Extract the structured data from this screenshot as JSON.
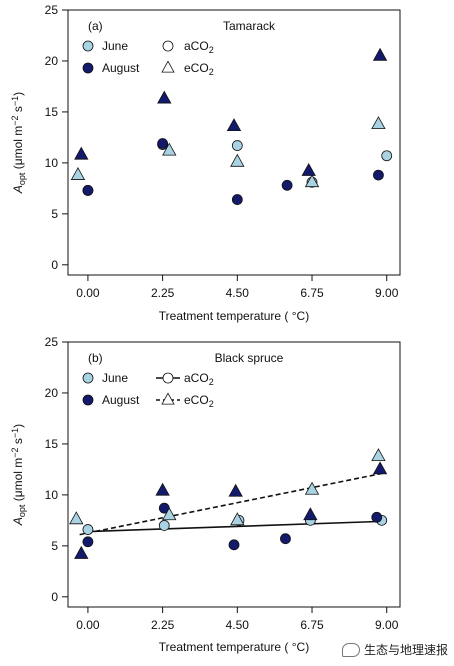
{
  "chart_data": [
    {
      "type": "scatter",
      "panel_label": "(a)",
      "title": "Tamarack",
      "xlabel": "Treatment temperature ( °C)",
      "ylabel_html": "A_opt (μmol m−2 s−1)",
      "ylabel_parts": {
        "main": "A",
        "sub": "opt",
        "unit1": " (μmol m",
        "sup1": "−2",
        "unit2": " s",
        "sup2": "−1",
        "unit3": ")"
      },
      "xlim": [
        -0.6,
        9.4
      ],
      "ylim": [
        -1,
        25
      ],
      "xticks": [
        0.0,
        2.25,
        4.5,
        6.75,
        9.0
      ],
      "xtick_labels": [
        "0.00",
        "2.25",
        "4.50",
        "6.75",
        "9.00"
      ],
      "yticks": [
        0,
        5,
        10,
        15,
        20,
        25
      ],
      "ytick_labels": [
        "0",
        "5",
        "10",
        "15",
        "20",
        "25"
      ],
      "legend": {
        "placement": "top-left",
        "season": [
          {
            "label": "June",
            "color": "#a9d3e2"
          },
          {
            "label": "August",
            "color": "#141a6b"
          }
        ],
        "co2": [
          {
            "label": "aCO",
            "sub": "2",
            "marker": "circle"
          },
          {
            "label": "eCO",
            "sub": "2",
            "marker": "triangle"
          }
        ],
        "show_lines": false
      },
      "series": [
        {
          "name": "June aCO2",
          "marker": "circle",
          "color": "#a9d3e2",
          "points": [
            [
              0.0,
              7.3
            ],
            [
              2.25,
              11.8
            ],
            [
              4.5,
              11.7
            ],
            [
              6.75,
              8.1
            ],
            [
              9.0,
              10.7
            ]
          ]
        },
        {
          "name": "August aCO2",
          "marker": "circle",
          "color": "#141a6b",
          "points": [
            [
              0.0,
              7.3
            ],
            [
              2.25,
              11.9
            ],
            [
              4.5,
              6.4
            ],
            [
              6.0,
              7.8
            ],
            [
              8.75,
              8.8
            ]
          ]
        },
        {
          "name": "June eCO2",
          "marker": "triangle",
          "color": "#a9d3e2",
          "points": [
            [
              -0.3,
              8.8
            ],
            [
              2.45,
              11.2
            ],
            [
              4.5,
              10.1
            ],
            [
              6.75,
              8.1
            ],
            [
              8.75,
              13.8
            ]
          ]
        },
        {
          "name": "August eCO2",
          "marker": "triangle",
          "color": "#141a6b",
          "points": [
            [
              -0.2,
              10.8
            ],
            [
              2.3,
              16.3
            ],
            [
              4.4,
              13.6
            ],
            [
              6.65,
              9.2
            ],
            [
              8.8,
              20.5
            ]
          ]
        }
      ],
      "fit_lines": []
    },
    {
      "type": "scatter",
      "panel_label": "(b)",
      "title": "Black spruce",
      "xlabel": "Treatment temperature ( °C)",
      "ylabel_html": "A_opt (μmol m−2 s−1)",
      "ylabel_parts": {
        "main": "A",
        "sub": "opt",
        "unit1": " (μmol m",
        "sup1": "−2",
        "unit2": " s",
        "sup2": "−1",
        "unit3": ")"
      },
      "xlim": [
        -0.6,
        9.4
      ],
      "ylim": [
        -1,
        25
      ],
      "xticks": [
        0.0,
        2.25,
        4.5,
        6.75,
        9.0
      ],
      "xtick_labels": [
        "0.00",
        "2.25",
        "4.50",
        "6.75",
        "9.00"
      ],
      "yticks": [
        0,
        5,
        10,
        15,
        20,
        25
      ],
      "ytick_labels": [
        "0",
        "5",
        "10",
        "15",
        "20",
        "25"
      ],
      "legend": {
        "placement": "top-left",
        "season": [
          {
            "label": "June",
            "color": "#a9d3e2"
          },
          {
            "label": "August",
            "color": "#141a6b"
          }
        ],
        "co2": [
          {
            "label": "aCO",
            "sub": "2",
            "marker": "circle",
            "line": "solid"
          },
          {
            "label": "eCO",
            "sub": "2",
            "marker": "triangle",
            "line": "dashed"
          }
        ],
        "show_lines": true
      },
      "series": [
        {
          "name": "June aCO2",
          "marker": "circle",
          "color": "#a9d3e2",
          "points": [
            [
              0.0,
              6.6
            ],
            [
              2.3,
              7.0
            ],
            [
              4.55,
              7.5
            ],
            [
              6.7,
              7.5
            ],
            [
              8.85,
              7.5
            ]
          ]
        },
        {
          "name": "August aCO2",
          "marker": "circle",
          "color": "#141a6b",
          "points": [
            [
              0.0,
              5.4
            ],
            [
              2.3,
              8.7
            ],
            [
              4.4,
              5.1
            ],
            [
              5.95,
              5.7
            ],
            [
              8.7,
              7.8
            ]
          ]
        },
        {
          "name": "June eCO2",
          "marker": "triangle",
          "color": "#a9d3e2",
          "points": [
            [
              -0.35,
              7.6
            ],
            [
              2.45,
              8.0
            ],
            [
              4.5,
              7.5
            ],
            [
              6.75,
              10.5
            ],
            [
              8.75,
              13.8
            ]
          ]
        },
        {
          "name": "August eCO2",
          "marker": "triangle",
          "color": "#141a6b",
          "points": [
            [
              -0.2,
              4.2
            ],
            [
              2.25,
              10.4
            ],
            [
              4.45,
              10.3
            ],
            [
              6.7,
              8.0
            ],
            [
              8.8,
              12.5
            ]
          ]
        }
      ],
      "fit_lines": [
        {
          "name": "aCO2 fit",
          "style": "solid",
          "x": [
            0.0,
            8.85
          ],
          "y": [
            6.4,
            7.4
          ]
        },
        {
          "name": "eCO2 fit",
          "style": "dashed",
          "x": [
            -0.25,
            8.85
          ],
          "y": [
            6.1,
            12.1
          ]
        }
      ]
    }
  ],
  "watermark": {
    "text": "生态与地理速报",
    "icon": "wechat-bubble-icon"
  },
  "colors": {
    "june": "#a9d3e2",
    "august": "#141a6b",
    "outline": "#111111"
  }
}
